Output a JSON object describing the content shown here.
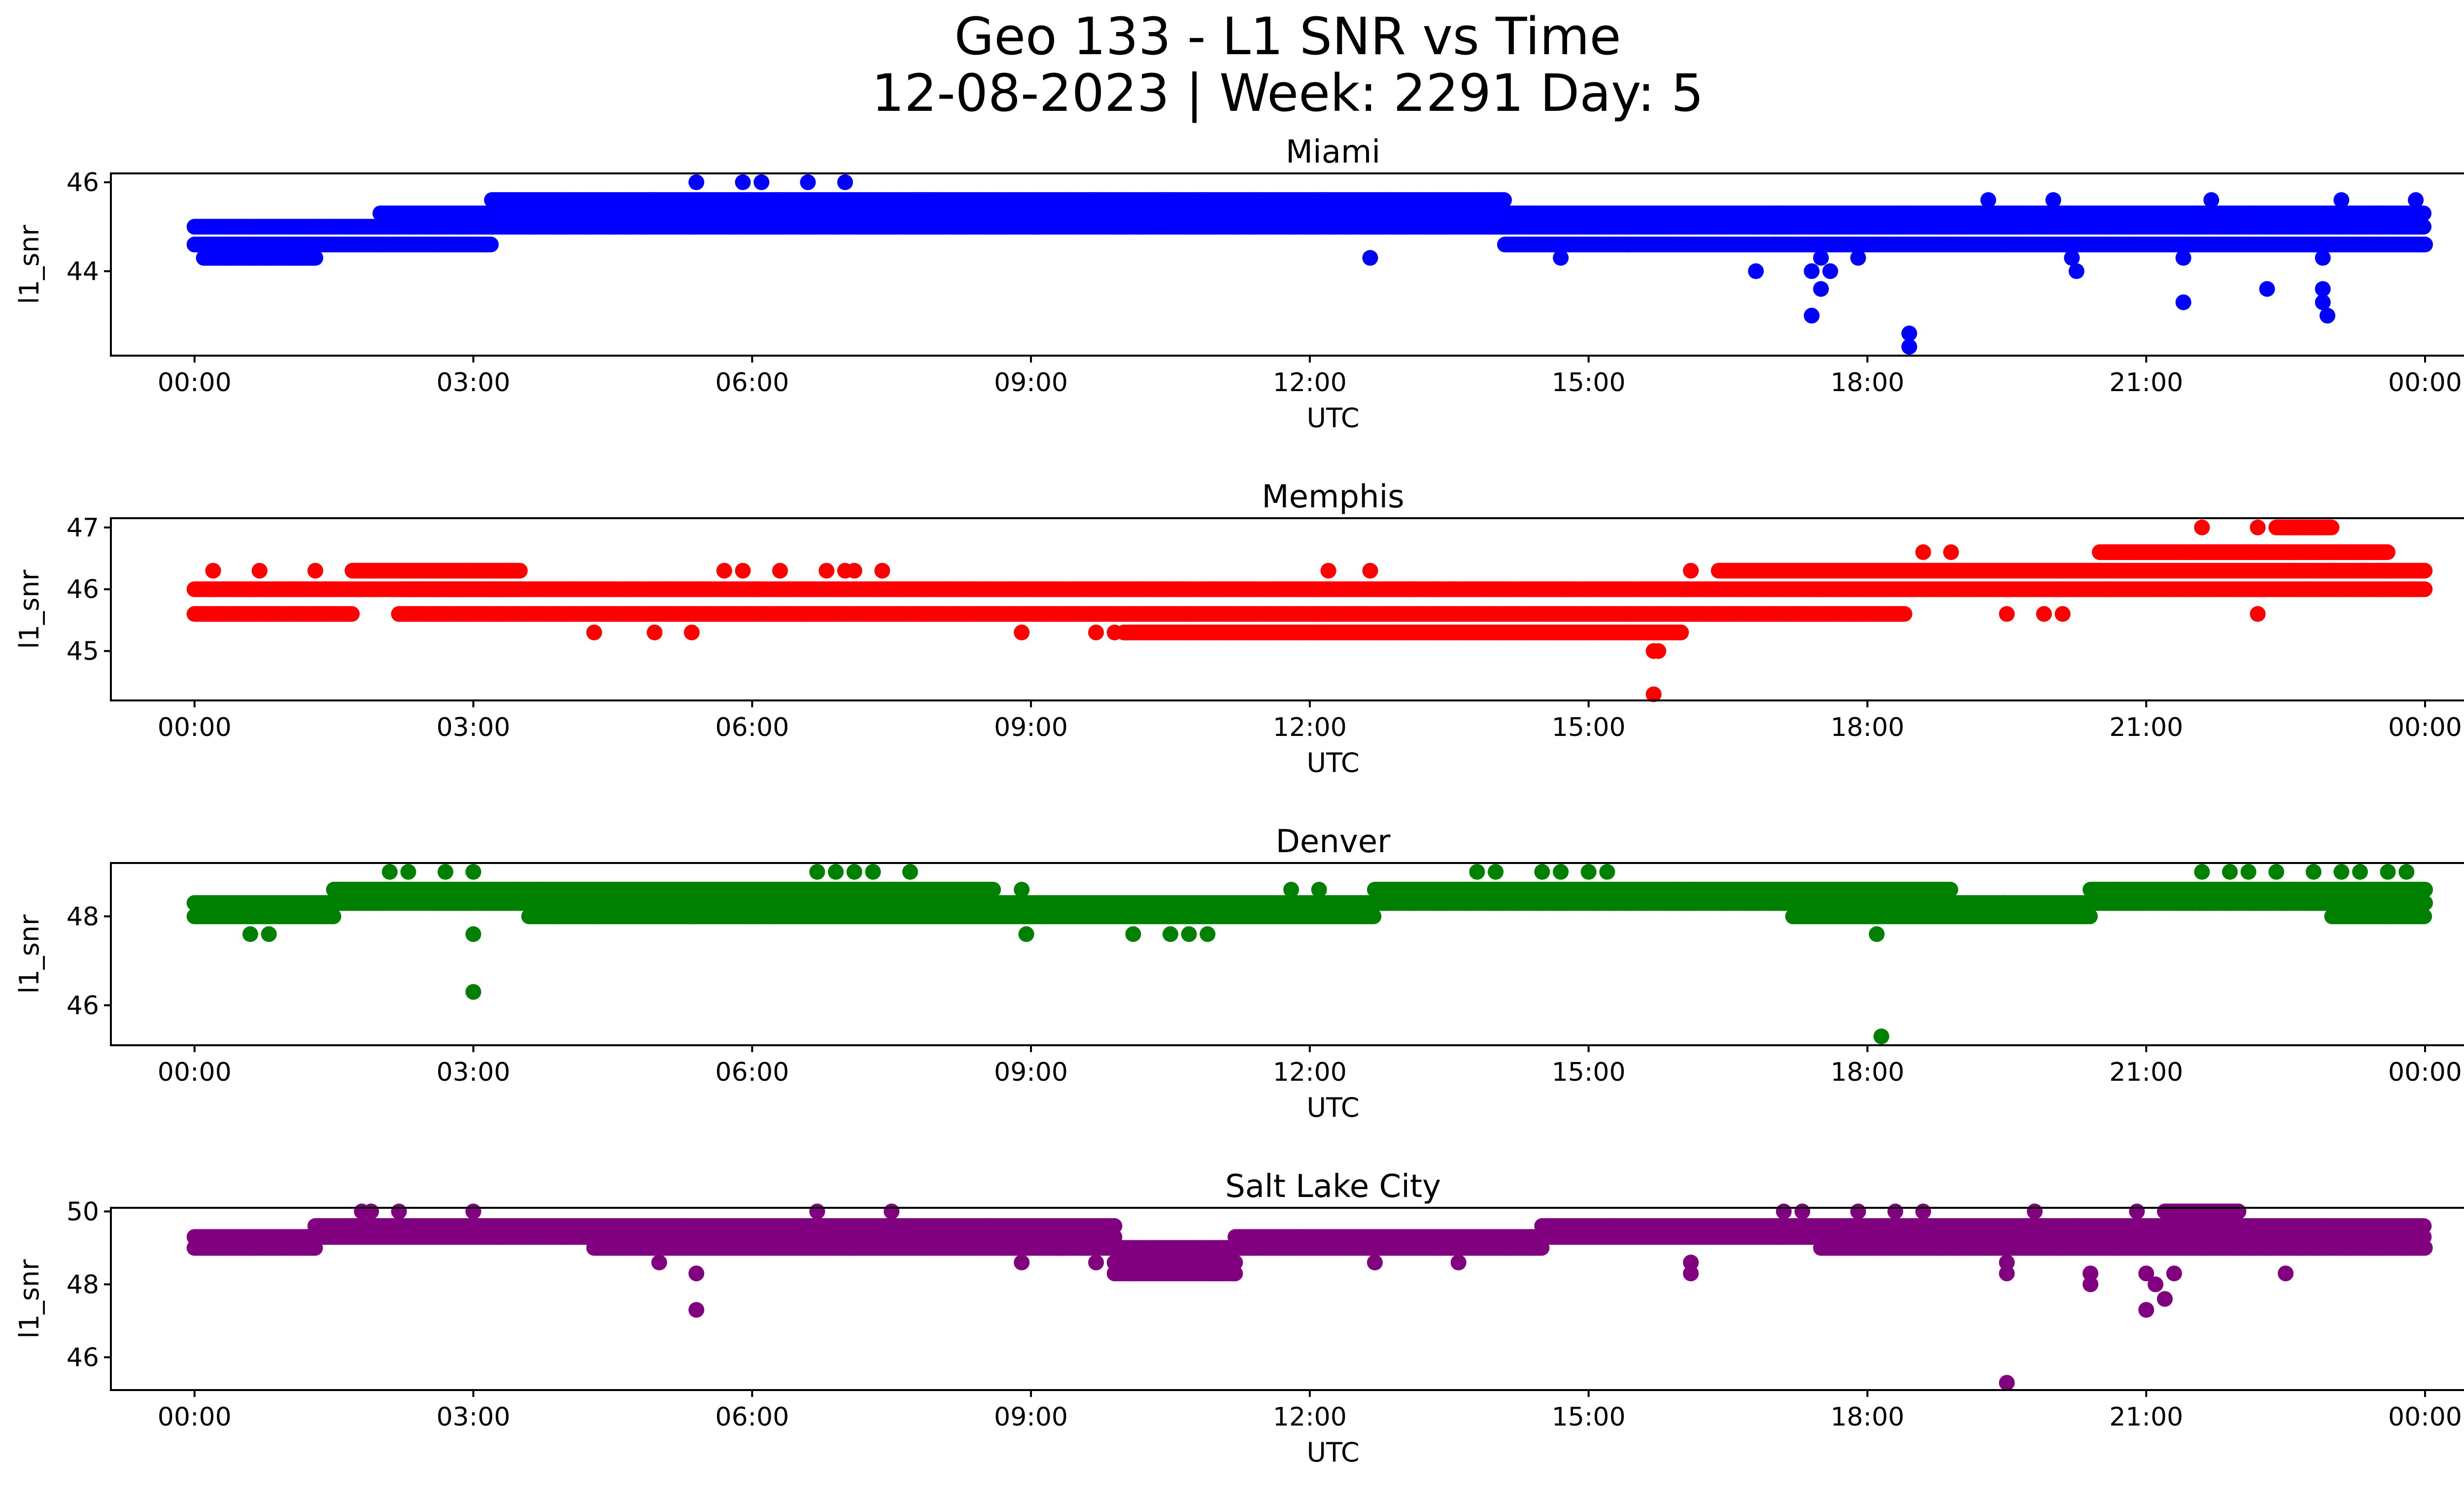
{
  "figure": {
    "title_line1": "Geo 133 - L1 SNR vs Time",
    "title_line2": "12-08-2023 | Week: 2291 Day: 5"
  },
  "chart_data": [
    {
      "type": "scatter",
      "title": "Miami",
      "xlabel": "UTC",
      "ylabel": "l1_snr",
      "color": "#0000ff",
      "x_range_hours": [
        -0.9,
        25.4
      ],
      "xticks": [
        0,
        3,
        6,
        9,
        12,
        15,
        18,
        21,
        24
      ],
      "xtick_labels": [
        "00:00",
        "03:00",
        "06:00",
        "09:00",
        "12:00",
        "15:00",
        "18:00",
        "21:00",
        "00:00"
      ],
      "ylim": [
        42.1,
        46.2
      ],
      "yticks": [
        44,
        46
      ],
      "bands": [
        {
          "x0": 0.0,
          "x1": 2.0,
          "levels": [
            45.0,
            44.6
          ]
        },
        {
          "x0": 0.1,
          "x1": 1.3,
          "levels": [
            44.3
          ]
        },
        {
          "x0": 2.0,
          "x1": 3.2,
          "levels": [
            45.3,
            45.0,
            44.6
          ]
        },
        {
          "x0": 3.2,
          "x1": 14.1,
          "levels": [
            45.6,
            45.3,
            45.0
          ]
        },
        {
          "x0": 14.1,
          "x1": 17.0,
          "levels": [
            45.3,
            45.0,
            44.6
          ]
        },
        {
          "x0": 17.0,
          "x1": 21.5,
          "levels": [
            45.3,
            45.0,
            44.6
          ]
        },
        {
          "x0": 21.5,
          "x1": 24.0,
          "levels": [
            45.3,
            45.0,
            44.6
          ]
        }
      ],
      "points": [
        [
          5.4,
          46.0
        ],
        [
          5.9,
          46.0
        ],
        [
          6.1,
          46.0
        ],
        [
          6.6,
          46.0
        ],
        [
          7.0,
          46.0
        ],
        [
          1.3,
          44.3
        ],
        [
          4.8,
          45.0
        ],
        [
          7.2,
          45.0
        ],
        [
          7.7,
          45.0
        ],
        [
          10.8,
          45.0
        ],
        [
          12.65,
          44.3
        ],
        [
          14.5,
          44.6
        ],
        [
          14.7,
          44.3
        ],
        [
          16.8,
          44.0
        ],
        [
          17.4,
          43.0
        ],
        [
          17.4,
          44.0
        ],
        [
          17.5,
          43.6
        ],
        [
          17.5,
          44.3
        ],
        [
          17.6,
          44.0
        ],
        [
          17.9,
          44.3
        ],
        [
          18.45,
          42.6
        ],
        [
          18.45,
          42.3
        ],
        [
          19.3,
          45.6
        ],
        [
          20.0,
          45.6
        ],
        [
          20.2,
          44.3
        ],
        [
          20.25,
          44.0
        ],
        [
          21.4,
          43.3
        ],
        [
          21.4,
          44.3
        ],
        [
          21.7,
          45.6
        ],
        [
          22.3,
          43.6
        ],
        [
          22.6,
          44.6
        ],
        [
          22.9,
          43.6
        ],
        [
          22.9,
          43.3
        ],
        [
          22.95,
          43.0
        ],
        [
          22.9,
          44.3
        ],
        [
          23.1,
          45.6
        ],
        [
          23.9,
          45.6
        ],
        [
          24.0,
          44.6
        ]
      ]
    },
    {
      "type": "scatter",
      "title": "Memphis",
      "xlabel": "UTC",
      "ylabel": "l1_snr",
      "color": "#ff0000",
      "x_range_hours": [
        -0.9,
        25.4
      ],
      "xticks": [
        0,
        3,
        6,
        9,
        12,
        15,
        18,
        21,
        24
      ],
      "xtick_labels": [
        "00:00",
        "03:00",
        "06:00",
        "09:00",
        "12:00",
        "15:00",
        "18:00",
        "21:00",
        "00:00"
      ],
      "ylim": [
        44.2,
        47.15
      ],
      "yticks": [
        45,
        46,
        47
      ],
      "bands": [
        {
          "x0": 0.0,
          "x1": 1.7,
          "levels": [
            46.0,
            45.6
          ]
        },
        {
          "x0": 1.7,
          "x1": 3.5,
          "levels": [
            46.3,
            46.0
          ]
        },
        {
          "x0": 2.2,
          "x1": 16.4,
          "levels": [
            46.0,
            45.6
          ]
        },
        {
          "x0": 10.0,
          "x1": 16.0,
          "levels": [
            45.3
          ]
        },
        {
          "x0": 16.4,
          "x1": 18.4,
          "levels": [
            46.3,
            46.0,
            45.6
          ]
        },
        {
          "x0": 18.4,
          "x1": 20.5,
          "levels": [
            46.3,
            46.0
          ]
        },
        {
          "x0": 20.5,
          "x1": 23.6,
          "levels": [
            46.6,
            46.3,
            46.0
          ]
        },
        {
          "x0": 22.4,
          "x1": 23.0,
          "levels": [
            47.0
          ]
        },
        {
          "x0": 23.6,
          "x1": 24.0,
          "levels": [
            46.3,
            46.0
          ]
        }
      ],
      "points": [
        [
          0.2,
          46.3
        ],
        [
          0.7,
          46.3
        ],
        [
          1.3,
          46.3
        ],
        [
          2.2,
          45.6
        ],
        [
          2.9,
          45.6
        ],
        [
          4.3,
          45.3
        ],
        [
          4.95,
          45.3
        ],
        [
          5.35,
          45.3
        ],
        [
          5.7,
          46.3
        ],
        [
          5.9,
          46.3
        ],
        [
          6.3,
          46.3
        ],
        [
          6.8,
          46.3
        ],
        [
          7.1,
          46.3
        ],
        [
          7.4,
          46.3
        ],
        [
          7.0,
          46.3
        ],
        [
          8.9,
          45.3
        ],
        [
          9.7,
          45.3
        ],
        [
          9.9,
          45.3
        ],
        [
          12.2,
          46.3
        ],
        [
          12.65,
          46.3
        ],
        [
          15.7,
          45.0
        ],
        [
          15.7,
          44.3
        ],
        [
          15.75,
          45.0
        ],
        [
          16.1,
          46.3
        ],
        [
          18.6,
          46.6
        ],
        [
          18.9,
          46.6
        ],
        [
          19.5,
          45.6
        ],
        [
          19.9,
          45.6
        ],
        [
          20.1,
          45.6
        ],
        [
          21.6,
          47.0
        ],
        [
          22.2,
          45.6
        ],
        [
          22.2,
          47.0
        ]
      ]
    },
    {
      "type": "scatter",
      "title": "Denver",
      "xlabel": "UTC",
      "ylabel": "l1_snr",
      "color": "#008000",
      "x_range_hours": [
        -0.9,
        25.4
      ],
      "xticks": [
        0,
        3,
        6,
        9,
        12,
        15,
        18,
        21,
        24
      ],
      "xtick_labels": [
        "00:00",
        "03:00",
        "06:00",
        "09:00",
        "12:00",
        "15:00",
        "18:00",
        "21:00",
        "00:00"
      ],
      "ylim": [
        45.1,
        49.2
      ],
      "yticks": [
        46,
        48
      ],
      "bands": [
        {
          "x0": 0.0,
          "x1": 1.5,
          "levels": [
            48.3,
            48.0
          ]
        },
        {
          "x0": 1.5,
          "x1": 8.6,
          "levels": [
            48.6,
            48.3
          ]
        },
        {
          "x0": 3.6,
          "x1": 8.6,
          "levels": [
            48.0
          ]
        },
        {
          "x0": 8.6,
          "x1": 12.7,
          "levels": [
            48.3,
            48.0
          ]
        },
        {
          "x0": 12.7,
          "x1": 17.2,
          "levels": [
            48.6,
            48.3
          ]
        },
        {
          "x0": 17.2,
          "x1": 18.9,
          "levels": [
            48.6,
            48.3,
            48.0
          ]
        },
        {
          "x0": 18.9,
          "x1": 20.4,
          "levels": [
            48.3,
            48.0
          ]
        },
        {
          "x0": 20.4,
          "x1": 24.0,
          "levels": [
            48.6,
            48.3
          ]
        },
        {
          "x0": 23.0,
          "x1": 24.0,
          "levels": [
            48.0
          ]
        }
      ],
      "points": [
        [
          0.6,
          47.6
        ],
        [
          0.8,
          47.6
        ],
        [
          2.1,
          49.0
        ],
        [
          2.3,
          49.0
        ],
        [
          2.7,
          49.0
        ],
        [
          3.0,
          49.0
        ],
        [
          3.0,
          47.6
        ],
        [
          3.0,
          46.3
        ],
        [
          6.7,
          49.0
        ],
        [
          6.9,
          49.0
        ],
        [
          7.1,
          49.0
        ],
        [
          7.3,
          49.0
        ],
        [
          7.7,
          49.0
        ],
        [
          8.95,
          47.6
        ],
        [
          8.9,
          48.6
        ],
        [
          10.1,
          47.6
        ],
        [
          10.5,
          47.6
        ],
        [
          10.7,
          47.6
        ],
        [
          10.9,
          47.6
        ],
        [
          11.8,
          48.6
        ],
        [
          12.1,
          48.6
        ],
        [
          13.8,
          49.0
        ],
        [
          14.0,
          49.0
        ],
        [
          14.5,
          49.0
        ],
        [
          14.7,
          49.0
        ],
        [
          15.0,
          49.0
        ],
        [
          15.2,
          49.0
        ],
        [
          18.1,
          47.6
        ],
        [
          18.15,
          45.3
        ],
        [
          21.6,
          49.0
        ],
        [
          21.9,
          49.0
        ],
        [
          22.1,
          49.0
        ],
        [
          22.4,
          49.0
        ],
        [
          22.8,
          49.0
        ],
        [
          23.1,
          49.0
        ],
        [
          23.3,
          49.0
        ],
        [
          23.6,
          49.0
        ],
        [
          23.8,
          49.0
        ]
      ]
    },
    {
      "type": "scatter",
      "title": "Salt Lake City",
      "xlabel": "UTC",
      "ylabel": "l1_snr",
      "color": "#800080",
      "x_range_hours": [
        -0.9,
        25.4
      ],
      "xticks": [
        0,
        3,
        6,
        9,
        12,
        15,
        18,
        21,
        24
      ],
      "xtick_labels": [
        "00:00",
        "03:00",
        "06:00",
        "09:00",
        "12:00",
        "15:00",
        "18:00",
        "21:00",
        "00:00"
      ],
      "ylim": [
        45.1,
        50.1
      ],
      "yticks": [
        46,
        48,
        50
      ],
      "bands": [
        {
          "x0": 0.0,
          "x1": 1.3,
          "levels": [
            49.3,
            49.0
          ]
        },
        {
          "x0": 1.3,
          "x1": 4.3,
          "levels": [
            49.6,
            49.3
          ]
        },
        {
          "x0": 4.3,
          "x1": 9.9,
          "levels": [
            49.6,
            49.3,
            49.0
          ]
        },
        {
          "x0": 9.9,
          "x1": 11.2,
          "levels": [
            49.0,
            48.6,
            48.3
          ]
        },
        {
          "x0": 11.2,
          "x1": 14.5,
          "levels": [
            49.3,
            49.0
          ]
        },
        {
          "x0": 14.5,
          "x1": 24.0,
          "levels": [
            49.6,
            49.3
          ]
        },
        {
          "x0": 17.5,
          "x1": 24.0,
          "levels": [
            49.0
          ]
        },
        {
          "x0": 21.2,
          "x1": 22.0,
          "levels": [
            50.0
          ]
        }
      ],
      "points": [
        [
          1.8,
          50.0
        ],
        [
          1.9,
          50.0
        ],
        [
          2.2,
          50.0
        ],
        [
          3.0,
          50.0
        ],
        [
          5.0,
          48.6
        ],
        [
          5.4,
          48.3
        ],
        [
          5.4,
          47.3
        ],
        [
          6.7,
          50.0
        ],
        [
          7.5,
          50.0
        ],
        [
          8.9,
          48.6
        ],
        [
          9.7,
          48.6
        ],
        [
          12.7,
          48.6
        ],
        [
          13.6,
          48.6
        ],
        [
          16.1,
          48.6
        ],
        [
          16.1,
          48.3
        ],
        [
          17.1,
          50.0
        ],
        [
          17.3,
          50.0
        ],
        [
          17.9,
          50.0
        ],
        [
          18.3,
          50.0
        ],
        [
          18.6,
          50.0
        ],
        [
          19.5,
          48.6
        ],
        [
          19.5,
          48.3
        ],
        [
          19.5,
          45.3
        ],
        [
          19.8,
          50.0
        ],
        [
          20.4,
          48.3
        ],
        [
          20.4,
          48.0
        ],
        [
          20.9,
          50.0
        ],
        [
          21.0,
          48.3
        ],
        [
          21.0,
          47.3
        ],
        [
          21.1,
          48.0
        ],
        [
          21.2,
          47.6
        ],
        [
          21.3,
          48.3
        ],
        [
          22.5,
          48.3
        ]
      ]
    }
  ]
}
